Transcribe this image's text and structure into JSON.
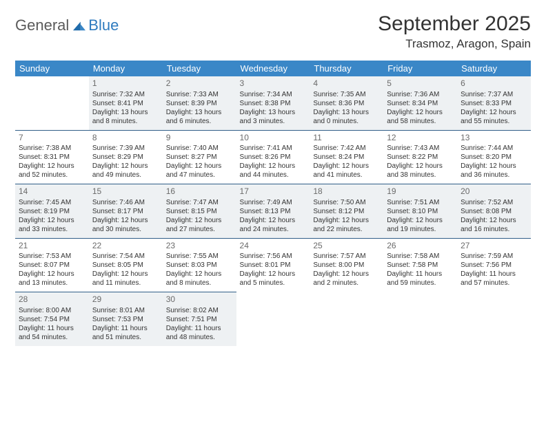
{
  "brand": {
    "general": "General",
    "blue": "Blue"
  },
  "title": "September 2025",
  "location": "Trasmoz, Aragon, Spain",
  "colors": {
    "header_bg": "#3a87c7",
    "header_text": "#ffffff",
    "cell_border": "#2f5d87",
    "shaded_bg": "#eef1f3",
    "body_text": "#333333",
    "daynum_text": "#6a6a6a",
    "logo_gray": "#5a5a5a",
    "logo_blue": "#2f7bbf"
  },
  "dayNames": [
    "Sunday",
    "Monday",
    "Tuesday",
    "Wednesday",
    "Thursday",
    "Friday",
    "Saturday"
  ],
  "weeks": [
    [
      {
        "blank": true,
        "shaded": false
      },
      {
        "num": "1",
        "sunrise": "7:32 AM",
        "sunset": "8:41 PM",
        "daylight": "13 hours and 8 minutes.",
        "shaded": true
      },
      {
        "num": "2",
        "sunrise": "7:33 AM",
        "sunset": "8:39 PM",
        "daylight": "13 hours and 6 minutes.",
        "shaded": true
      },
      {
        "num": "3",
        "sunrise": "7:34 AM",
        "sunset": "8:38 PM",
        "daylight": "13 hours and 3 minutes.",
        "shaded": true
      },
      {
        "num": "4",
        "sunrise": "7:35 AM",
        "sunset": "8:36 PM",
        "daylight": "13 hours and 0 minutes.",
        "shaded": true
      },
      {
        "num": "5",
        "sunrise": "7:36 AM",
        "sunset": "8:34 PM",
        "daylight": "12 hours and 58 minutes.",
        "shaded": true
      },
      {
        "num": "6",
        "sunrise": "7:37 AM",
        "sunset": "8:33 PM",
        "daylight": "12 hours and 55 minutes.",
        "shaded": true
      }
    ],
    [
      {
        "num": "7",
        "sunrise": "7:38 AM",
        "sunset": "8:31 PM",
        "daylight": "12 hours and 52 minutes.",
        "shaded": false
      },
      {
        "num": "8",
        "sunrise": "7:39 AM",
        "sunset": "8:29 PM",
        "daylight": "12 hours and 49 minutes.",
        "shaded": false
      },
      {
        "num": "9",
        "sunrise": "7:40 AM",
        "sunset": "8:27 PM",
        "daylight": "12 hours and 47 minutes.",
        "shaded": false
      },
      {
        "num": "10",
        "sunrise": "7:41 AM",
        "sunset": "8:26 PM",
        "daylight": "12 hours and 44 minutes.",
        "shaded": false
      },
      {
        "num": "11",
        "sunrise": "7:42 AM",
        "sunset": "8:24 PM",
        "daylight": "12 hours and 41 minutes.",
        "shaded": false
      },
      {
        "num": "12",
        "sunrise": "7:43 AM",
        "sunset": "8:22 PM",
        "daylight": "12 hours and 38 minutes.",
        "shaded": false
      },
      {
        "num": "13",
        "sunrise": "7:44 AM",
        "sunset": "8:20 PM",
        "daylight": "12 hours and 36 minutes.",
        "shaded": false
      }
    ],
    [
      {
        "num": "14",
        "sunrise": "7:45 AM",
        "sunset": "8:19 PM",
        "daylight": "12 hours and 33 minutes.",
        "shaded": true
      },
      {
        "num": "15",
        "sunrise": "7:46 AM",
        "sunset": "8:17 PM",
        "daylight": "12 hours and 30 minutes.",
        "shaded": true
      },
      {
        "num": "16",
        "sunrise": "7:47 AM",
        "sunset": "8:15 PM",
        "daylight": "12 hours and 27 minutes.",
        "shaded": true
      },
      {
        "num": "17",
        "sunrise": "7:49 AM",
        "sunset": "8:13 PM",
        "daylight": "12 hours and 24 minutes.",
        "shaded": true
      },
      {
        "num": "18",
        "sunrise": "7:50 AM",
        "sunset": "8:12 PM",
        "daylight": "12 hours and 22 minutes.",
        "shaded": true
      },
      {
        "num": "19",
        "sunrise": "7:51 AM",
        "sunset": "8:10 PM",
        "daylight": "12 hours and 19 minutes.",
        "shaded": true
      },
      {
        "num": "20",
        "sunrise": "7:52 AM",
        "sunset": "8:08 PM",
        "daylight": "12 hours and 16 minutes.",
        "shaded": true
      }
    ],
    [
      {
        "num": "21",
        "sunrise": "7:53 AM",
        "sunset": "8:07 PM",
        "daylight": "12 hours and 13 minutes.",
        "shaded": false
      },
      {
        "num": "22",
        "sunrise": "7:54 AM",
        "sunset": "8:05 PM",
        "daylight": "12 hours and 11 minutes.",
        "shaded": false
      },
      {
        "num": "23",
        "sunrise": "7:55 AM",
        "sunset": "8:03 PM",
        "daylight": "12 hours and 8 minutes.",
        "shaded": false
      },
      {
        "num": "24",
        "sunrise": "7:56 AM",
        "sunset": "8:01 PM",
        "daylight": "12 hours and 5 minutes.",
        "shaded": false
      },
      {
        "num": "25",
        "sunrise": "7:57 AM",
        "sunset": "8:00 PM",
        "daylight": "12 hours and 2 minutes.",
        "shaded": false
      },
      {
        "num": "26",
        "sunrise": "7:58 AM",
        "sunset": "7:58 PM",
        "daylight": "11 hours and 59 minutes.",
        "shaded": false
      },
      {
        "num": "27",
        "sunrise": "7:59 AM",
        "sunset": "7:56 PM",
        "daylight": "11 hours and 57 minutes.",
        "shaded": false
      }
    ],
    [
      {
        "num": "28",
        "sunrise": "8:00 AM",
        "sunset": "7:54 PM",
        "daylight": "11 hours and 54 minutes.",
        "shaded": true
      },
      {
        "num": "29",
        "sunrise": "8:01 AM",
        "sunset": "7:53 PM",
        "daylight": "11 hours and 51 minutes.",
        "shaded": true
      },
      {
        "num": "30",
        "sunrise": "8:02 AM",
        "sunset": "7:51 PM",
        "daylight": "11 hours and 48 minutes.",
        "shaded": true
      },
      {
        "blank": true,
        "shaded": false
      },
      {
        "blank": true,
        "shaded": false
      },
      {
        "blank": true,
        "shaded": false
      },
      {
        "blank": true,
        "shaded": false
      }
    ]
  ],
  "labels": {
    "sunrise_prefix": "Sunrise: ",
    "sunset_prefix": "Sunset: ",
    "daylight_prefix": "Daylight: "
  }
}
